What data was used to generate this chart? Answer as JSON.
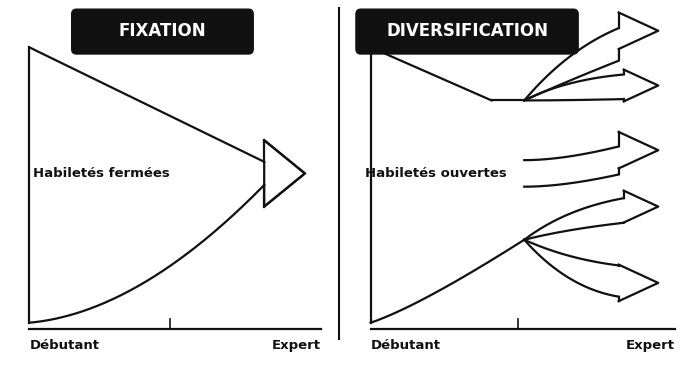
{
  "fig_width": 6.88,
  "fig_height": 3.77,
  "bg_color": "#ffffff",
  "left_title": "FIXATION",
  "right_title": "DIVERSIFICATION",
  "left_label": "Habiletés fermées",
  "right_label": "Habiletés ouvertes",
  "x_label_left_start": "Débutant",
  "x_label_left_end": "Expert",
  "x_label_right_start": "Débutant",
  "x_label_right_end": "Expert",
  "title_box_color": "#111111",
  "title_text_color": "#ffffff",
  "line_color": "#111111",
  "label_color": "#111111"
}
